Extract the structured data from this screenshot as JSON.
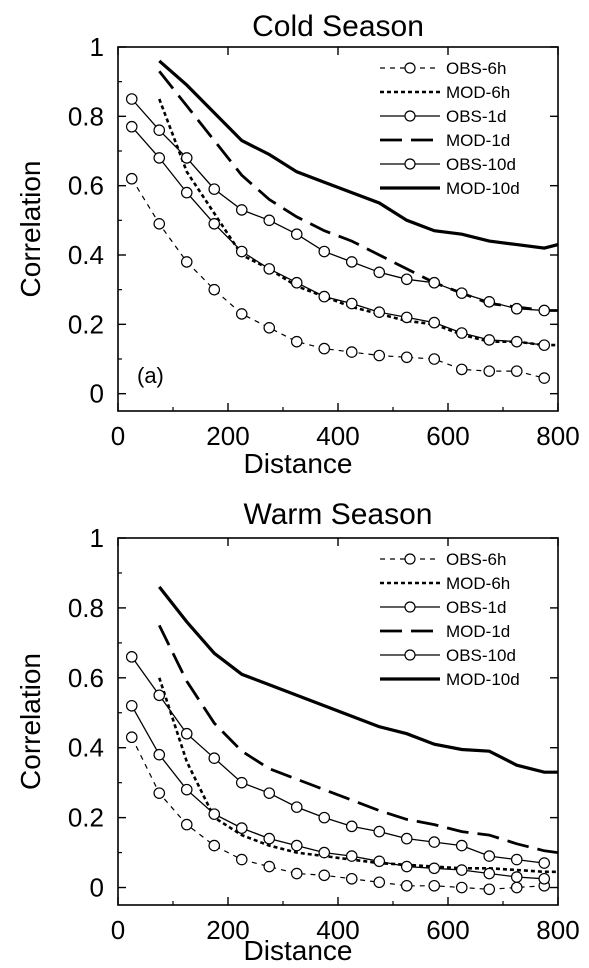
{
  "chart_data": [
    {
      "type": "line",
      "title": "Cold Season",
      "xlabel": "Distance",
      "ylabel": "Correlation",
      "xlim": [
        0,
        800
      ],
      "ylim": [
        -0.05,
        1.0
      ],
      "xticks": [
        "0",
        "200",
        "400",
        "600",
        "800"
      ],
      "yticks": [
        "0",
        "0.2",
        "0.4",
        "0.6",
        "0.8",
        "1"
      ],
      "panel_label": "(a)",
      "legend_position": "top-right",
      "grid": false,
      "series": [
        {
          "name": "OBS-6h",
          "style": "dashed-circle",
          "x": [
            25,
            75,
            125,
            175,
            225,
            275,
            325,
            375,
            425,
            475,
            525,
            575,
            625,
            675,
            725,
            775
          ],
          "y": [
            0.62,
            0.49,
            0.38,
            0.3,
            0.23,
            0.19,
            0.15,
            0.13,
            0.12,
            0.11,
            0.105,
            0.1,
            0.07,
            0.065,
            0.065,
            0.045
          ]
        },
        {
          "name": "MOD-6h",
          "style": "short-dash",
          "x": [
            75,
            125,
            175,
            225,
            275,
            325,
            375,
            425,
            475,
            525,
            575,
            625,
            675,
            725,
            775,
            800
          ],
          "y": [
            0.85,
            0.64,
            0.52,
            0.4,
            0.36,
            0.31,
            0.28,
            0.25,
            0.23,
            0.21,
            0.2,
            0.17,
            0.15,
            0.15,
            0.14,
            0.14
          ]
        },
        {
          "name": "OBS-1d",
          "style": "solid-circle",
          "x": [
            25,
            75,
            125,
            175,
            225,
            275,
            325,
            375,
            425,
            475,
            525,
            575,
            625,
            675,
            725,
            775
          ],
          "y": [
            0.77,
            0.68,
            0.58,
            0.49,
            0.41,
            0.36,
            0.32,
            0.28,
            0.26,
            0.235,
            0.22,
            0.205,
            0.175,
            0.155,
            0.15,
            0.14
          ]
        },
        {
          "name": "MOD-1d",
          "style": "long-dash",
          "x": [
            75,
            125,
            175,
            225,
            275,
            325,
            375,
            425,
            475,
            525,
            575,
            625,
            675,
            725,
            775,
            800
          ],
          "y": [
            0.93,
            0.83,
            0.73,
            0.63,
            0.56,
            0.51,
            0.47,
            0.44,
            0.4,
            0.36,
            0.32,
            0.29,
            0.26,
            0.25,
            0.24,
            0.24
          ]
        },
        {
          "name": "OBS-10d",
          "style": "solid-circle",
          "x": [
            25,
            75,
            125,
            175,
            225,
            275,
            325,
            375,
            425,
            475,
            525,
            575,
            625,
            675,
            725,
            775
          ],
          "y": [
            0.85,
            0.76,
            0.68,
            0.59,
            0.53,
            0.5,
            0.46,
            0.41,
            0.38,
            0.35,
            0.33,
            0.32,
            0.29,
            0.265,
            0.245,
            0.24
          ]
        },
        {
          "name": "MOD-10d",
          "style": "solid",
          "x": [
            75,
            125,
            175,
            225,
            275,
            325,
            375,
            425,
            475,
            525,
            575,
            625,
            675,
            725,
            775,
            800
          ],
          "y": [
            0.96,
            0.89,
            0.81,
            0.73,
            0.69,
            0.64,
            0.61,
            0.58,
            0.55,
            0.5,
            0.47,
            0.46,
            0.44,
            0.43,
            0.42,
            0.43
          ]
        }
      ]
    },
    {
      "type": "line",
      "title": "Warm Season",
      "xlabel": "Distance",
      "ylabel": "Correlation",
      "xlim": [
        0,
        800
      ],
      "ylim": [
        -0.05,
        1.0
      ],
      "xticks": [
        "0",
        "200",
        "400",
        "600",
        "800"
      ],
      "yticks": [
        "0",
        "0.2",
        "0.4",
        "0.6",
        "0.8",
        "1"
      ],
      "panel_label": "",
      "legend_position": "top-right",
      "grid": false,
      "series": [
        {
          "name": "OBS-6h",
          "style": "dashed-circle",
          "x": [
            25,
            75,
            125,
            175,
            225,
            275,
            325,
            375,
            425,
            475,
            525,
            575,
            625,
            675,
            725,
            775
          ],
          "y": [
            0.43,
            0.27,
            0.18,
            0.12,
            0.08,
            0.06,
            0.04,
            0.035,
            0.025,
            0.015,
            0.005,
            0.005,
            0.0,
            -0.005,
            0.0,
            0.005
          ]
        },
        {
          "name": "MOD-6h",
          "style": "short-dash",
          "x": [
            75,
            125,
            175,
            225,
            275,
            325,
            375,
            425,
            475,
            525,
            575,
            625,
            675,
            725,
            775,
            800
          ],
          "y": [
            0.6,
            0.36,
            0.2,
            0.15,
            0.12,
            0.1,
            0.09,
            0.08,
            0.07,
            0.065,
            0.06,
            0.055,
            0.055,
            0.05,
            0.045,
            0.045
          ]
        },
        {
          "name": "OBS-1d",
          "style": "solid-circle",
          "x": [
            25,
            75,
            125,
            175,
            225,
            275,
            325,
            375,
            425,
            475,
            525,
            575,
            625,
            675,
            725,
            775
          ],
          "y": [
            0.52,
            0.38,
            0.28,
            0.21,
            0.17,
            0.14,
            0.12,
            0.1,
            0.09,
            0.075,
            0.06,
            0.055,
            0.05,
            0.04,
            0.03,
            0.025
          ]
        },
        {
          "name": "MOD-1d",
          "style": "long-dash",
          "x": [
            75,
            125,
            175,
            225,
            275,
            325,
            375,
            425,
            475,
            525,
            575,
            625,
            675,
            725,
            775,
            800
          ],
          "y": [
            0.75,
            0.59,
            0.47,
            0.39,
            0.34,
            0.31,
            0.28,
            0.25,
            0.22,
            0.195,
            0.18,
            0.16,
            0.15,
            0.125,
            0.105,
            0.1
          ]
        },
        {
          "name": "OBS-10d",
          "style": "solid-circle",
          "x": [
            25,
            75,
            125,
            175,
            225,
            275,
            325,
            375,
            425,
            475,
            525,
            575,
            625,
            675,
            725,
            775
          ],
          "y": [
            0.66,
            0.55,
            0.44,
            0.37,
            0.3,
            0.27,
            0.23,
            0.2,
            0.175,
            0.16,
            0.14,
            0.13,
            0.12,
            0.09,
            0.08,
            0.07
          ]
        },
        {
          "name": "MOD-10d",
          "style": "solid",
          "x": [
            75,
            125,
            175,
            225,
            275,
            325,
            375,
            425,
            475,
            525,
            575,
            625,
            675,
            725,
            775,
            800
          ],
          "y": [
            0.86,
            0.76,
            0.67,
            0.61,
            0.58,
            0.55,
            0.52,
            0.49,
            0.46,
            0.44,
            0.41,
            0.395,
            0.39,
            0.35,
            0.33,
            0.33
          ]
        }
      ]
    }
  ]
}
